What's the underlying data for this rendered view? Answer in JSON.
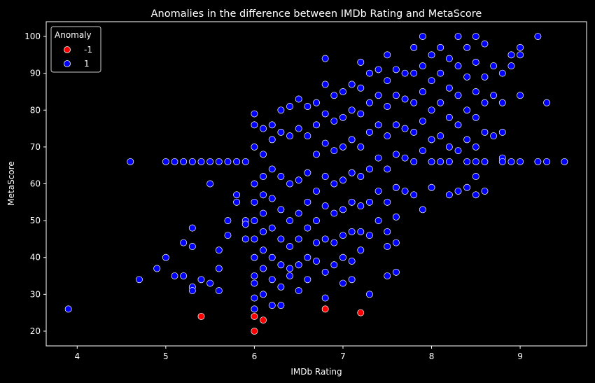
{
  "chart_data": {
    "type": "scatter",
    "title": "Anomalies in the difference between IMDb Rating and MetaScore",
    "xlabel": "IMDb Rating",
    "ylabel": "MetaScore",
    "xlim": [
      3.65,
      9.75
    ],
    "ylim": [
      16,
      104
    ],
    "xticks": [
      "4",
      "5",
      "6",
      "7",
      "8",
      "9"
    ],
    "yticks": [
      "20",
      "30",
      "40",
      "50",
      "60",
      "70",
      "80",
      "90",
      "100"
    ],
    "grid": false,
    "legend": {
      "title": "Anomaly",
      "placement": "upper-left",
      "entries": [
        {
          "label": "-1",
          "color": "#ff0000"
        },
        {
          "label": "1",
          "color": "#0000ff"
        }
      ]
    },
    "series": [
      {
        "name": "-1",
        "color": "#ff0000",
        "points": [
          [
            5.4,
            24
          ],
          [
            6.0,
            24
          ],
          [
            6.0,
            20
          ],
          [
            6.1,
            23
          ],
          [
            6.8,
            26
          ],
          [
            7.2,
            25
          ]
        ]
      },
      {
        "name": "1",
        "color": "#0000ff",
        "points": [
          [
            3.9,
            26
          ],
          [
            4.6,
            66
          ],
          [
            4.7,
            34
          ],
          [
            4.9,
            37
          ],
          [
            5.0,
            40
          ],
          [
            5.1,
            35
          ],
          [
            5.2,
            44
          ],
          [
            5.2,
            35
          ],
          [
            5.3,
            43
          ],
          [
            5.3,
            48
          ],
          [
            5.3,
            32
          ],
          [
            5.3,
            31
          ],
          [
            5.4,
            34
          ],
          [
            5.5,
            60
          ],
          [
            5.5,
            33
          ],
          [
            5.6,
            42
          ],
          [
            5.6,
            37
          ],
          [
            5.6,
            31
          ],
          [
            5.7,
            50
          ],
          [
            5.7,
            46
          ],
          [
            5.8,
            57
          ],
          [
            5.8,
            55
          ],
          [
            5.9,
            50
          ],
          [
            5.9,
            49
          ],
          [
            5.9,
            45
          ],
          [
            5.0,
            66
          ],
          [
            5.1,
            66
          ],
          [
            5.2,
            66
          ],
          [
            5.3,
            66
          ],
          [
            5.4,
            66
          ],
          [
            5.5,
            66
          ],
          [
            5.6,
            66
          ],
          [
            5.7,
            66
          ],
          [
            5.8,
            66
          ],
          [
            5.9,
            66
          ],
          [
            6.0,
            79
          ],
          [
            6.0,
            76
          ],
          [
            6.0,
            70
          ],
          [
            6.0,
            60
          ],
          [
            6.0,
            55
          ],
          [
            6.0,
            50
          ],
          [
            6.0,
            45
          ],
          [
            6.0,
            40
          ],
          [
            6.0,
            35
          ],
          [
            6.0,
            33
          ],
          [
            6.0,
            29
          ],
          [
            6.0,
            26
          ],
          [
            6.1,
            75
          ],
          [
            6.1,
            68
          ],
          [
            6.1,
            62
          ],
          [
            6.1,
            57
          ],
          [
            6.1,
            52
          ],
          [
            6.1,
            47
          ],
          [
            6.1,
            42
          ],
          [
            6.1,
            37
          ],
          [
            6.1,
            30
          ],
          [
            6.2,
            76
          ],
          [
            6.2,
            72
          ],
          [
            6.2,
            64
          ],
          [
            6.2,
            56
          ],
          [
            6.2,
            48
          ],
          [
            6.2,
            40
          ],
          [
            6.2,
            34
          ],
          [
            6.2,
            27
          ],
          [
            6.3,
            80
          ],
          [
            6.3,
            74
          ],
          [
            6.3,
            62
          ],
          [
            6.3,
            53
          ],
          [
            6.3,
            45
          ],
          [
            6.3,
            38
          ],
          [
            6.3,
            32
          ],
          [
            6.3,
            27
          ],
          [
            6.4,
            81
          ],
          [
            6.4,
            73
          ],
          [
            6.4,
            60
          ],
          [
            6.4,
            50
          ],
          [
            6.4,
            43
          ],
          [
            6.4,
            37
          ],
          [
            6.4,
            35
          ],
          [
            6.5,
            83
          ],
          [
            6.5,
            75
          ],
          [
            6.5,
            61
          ],
          [
            6.5,
            52
          ],
          [
            6.5,
            45
          ],
          [
            6.5,
            38
          ],
          [
            6.5,
            31
          ],
          [
            6.6,
            81
          ],
          [
            6.6,
            73
          ],
          [
            6.6,
            63
          ],
          [
            6.6,
            55
          ],
          [
            6.6,
            48
          ],
          [
            6.6,
            40
          ],
          [
            6.6,
            34
          ],
          [
            6.7,
            82
          ],
          [
            6.7,
            76
          ],
          [
            6.7,
            68
          ],
          [
            6.7,
            58
          ],
          [
            6.7,
            50
          ],
          [
            6.7,
            44
          ],
          [
            6.7,
            39
          ],
          [
            6.8,
            94
          ],
          [
            6.8,
            87
          ],
          [
            6.8,
            79
          ],
          [
            6.8,
            71
          ],
          [
            6.8,
            62
          ],
          [
            6.8,
            54
          ],
          [
            6.8,
            45
          ],
          [
            6.8,
            36
          ],
          [
            6.8,
            29
          ],
          [
            6.9,
            84
          ],
          [
            6.9,
            77
          ],
          [
            6.9,
            69
          ],
          [
            6.9,
            60
          ],
          [
            6.9,
            52
          ],
          [
            6.9,
            44
          ],
          [
            6.9,
            38
          ],
          [
            7.0,
            85
          ],
          [
            7.0,
            78
          ],
          [
            7.0,
            70
          ],
          [
            7.0,
            61
          ],
          [
            7.0,
            53
          ],
          [
            7.0,
            46
          ],
          [
            7.0,
            40
          ],
          [
            7.0,
            33
          ],
          [
            7.1,
            87
          ],
          [
            7.1,
            80
          ],
          [
            7.1,
            72
          ],
          [
            7.1,
            63
          ],
          [
            7.1,
            55
          ],
          [
            7.1,
            47
          ],
          [
            7.1,
            39
          ],
          [
            7.1,
            34
          ],
          [
            7.2,
            93
          ],
          [
            7.2,
            86
          ],
          [
            7.2,
            79
          ],
          [
            7.2,
            70
          ],
          [
            7.2,
            62
          ],
          [
            7.2,
            54
          ],
          [
            7.2,
            47
          ],
          [
            7.2,
            42
          ],
          [
            7.3,
            90
          ],
          [
            7.3,
            82
          ],
          [
            7.3,
            74
          ],
          [
            7.3,
            64
          ],
          [
            7.3,
            55
          ],
          [
            7.3,
            46
          ],
          [
            7.3,
            30
          ],
          [
            7.4,
            91
          ],
          [
            7.4,
            84
          ],
          [
            7.4,
            76
          ],
          [
            7.4,
            67
          ],
          [
            7.4,
            58
          ],
          [
            7.4,
            50
          ],
          [
            7.5,
            95
          ],
          [
            7.5,
            88
          ],
          [
            7.5,
            81
          ],
          [
            7.5,
            73
          ],
          [
            7.5,
            64
          ],
          [
            7.5,
            55
          ],
          [
            7.5,
            47
          ],
          [
            7.5,
            43
          ],
          [
            7.5,
            35
          ],
          [
            7.6,
            91
          ],
          [
            7.6,
            84
          ],
          [
            7.6,
            76
          ],
          [
            7.6,
            68
          ],
          [
            7.6,
            59
          ],
          [
            7.6,
            51
          ],
          [
            7.6,
            44
          ],
          [
            7.6,
            36
          ],
          [
            7.7,
            90
          ],
          [
            7.7,
            83
          ],
          [
            7.7,
            75
          ],
          [
            7.7,
            67
          ],
          [
            7.7,
            58
          ],
          [
            7.8,
            97
          ],
          [
            7.8,
            90
          ],
          [
            7.8,
            82
          ],
          [
            7.8,
            74
          ],
          [
            7.8,
            66
          ],
          [
            7.8,
            57
          ],
          [
            7.9,
            100
          ],
          [
            7.9,
            92
          ],
          [
            7.9,
            85
          ],
          [
            7.9,
            77
          ],
          [
            7.9,
            69
          ],
          [
            7.9,
            53
          ],
          [
            8.0,
            95
          ],
          [
            8.0,
            88
          ],
          [
            8.0,
            80
          ],
          [
            8.0,
            72
          ],
          [
            8.0,
            66
          ],
          [
            8.0,
            59
          ],
          [
            8.1,
            97
          ],
          [
            8.1,
            90
          ],
          [
            8.1,
            82
          ],
          [
            8.1,
            73
          ],
          [
            8.1,
            66
          ],
          [
            8.2,
            94
          ],
          [
            8.2,
            86
          ],
          [
            8.2,
            78
          ],
          [
            8.2,
            70
          ],
          [
            8.2,
            66
          ],
          [
            8.2,
            57
          ],
          [
            8.3,
            100
          ],
          [
            8.3,
            92
          ],
          [
            8.3,
            84
          ],
          [
            8.3,
            76
          ],
          [
            8.3,
            69
          ],
          [
            8.3,
            58
          ],
          [
            8.4,
            97
          ],
          [
            8.4,
            89
          ],
          [
            8.4,
            80
          ],
          [
            8.4,
            72
          ],
          [
            8.4,
            66
          ],
          [
            8.4,
            59
          ],
          [
            8.5,
            100
          ],
          [
            8.5,
            93
          ],
          [
            8.5,
            85
          ],
          [
            8.5,
            78
          ],
          [
            8.5,
            70
          ],
          [
            8.5,
            66
          ],
          [
            8.5,
            62
          ],
          [
            8.5,
            57
          ],
          [
            8.6,
            98
          ],
          [
            8.6,
            89
          ],
          [
            8.6,
            82
          ],
          [
            8.6,
            74
          ],
          [
            8.6,
            66
          ],
          [
            8.6,
            58
          ],
          [
            8.7,
            92
          ],
          [
            8.7,
            84
          ],
          [
            8.7,
            73
          ],
          [
            8.8,
            90
          ],
          [
            8.8,
            82
          ],
          [
            8.8,
            74
          ],
          [
            8.8,
            67
          ],
          [
            8.8,
            66
          ],
          [
            8.9,
            95
          ],
          [
            8.9,
            92
          ],
          [
            8.9,
            66
          ],
          [
            9.0,
            97
          ],
          [
            9.0,
            95
          ],
          [
            9.0,
            84
          ],
          [
            9.0,
            66
          ],
          [
            9.2,
            100
          ],
          [
            9.2,
            66
          ],
          [
            9.3,
            82
          ],
          [
            9.3,
            66
          ],
          [
            9.5,
            66
          ]
        ]
      }
    ]
  }
}
